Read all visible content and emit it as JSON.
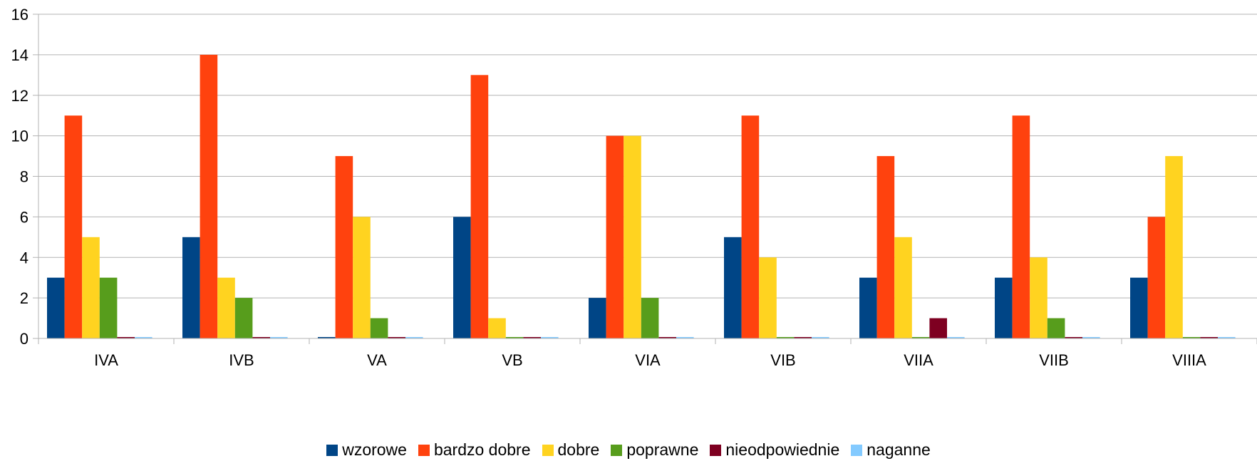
{
  "chart_data": {
    "type": "bar",
    "title": "",
    "xlabel": "",
    "ylabel": "",
    "categories": [
      "IVA",
      "IVB",
      "VA",
      "VB",
      "VIA",
      "VIB",
      "VIIA",
      "VIIB",
      "VIIIA"
    ],
    "ylim": [
      0,
      16
    ],
    "yticks": [
      0,
      2,
      4,
      6,
      8,
      10,
      12,
      14,
      16
    ],
    "grid": true,
    "legend_position": "bottom",
    "series": [
      {
        "name": "wzorowe",
        "color": "#004586",
        "values": [
          3,
          5,
          0,
          6,
          2,
          5,
          3,
          3,
          3
        ]
      },
      {
        "name": "bardzo dobre",
        "color": "#ff420e",
        "values": [
          11,
          14,
          9,
          13,
          10,
          11,
          9,
          11,
          6
        ]
      },
      {
        "name": "dobre",
        "color": "#ffd320",
        "values": [
          5,
          3,
          6,
          1,
          10,
          4,
          5,
          4,
          9
        ]
      },
      {
        "name": "poprawne",
        "color": "#579d1c",
        "values": [
          3,
          2,
          1,
          0,
          2,
          0,
          0,
          1,
          0
        ]
      },
      {
        "name": "nieodpowiednie",
        "color": "#7e0021",
        "values": [
          0,
          0,
          0,
          0,
          0,
          0,
          1,
          0,
          0
        ]
      },
      {
        "name": "naganne",
        "color": "#83caff",
        "values": [
          0,
          0,
          0,
          0,
          0,
          0,
          0,
          0,
          0
        ]
      }
    ]
  }
}
